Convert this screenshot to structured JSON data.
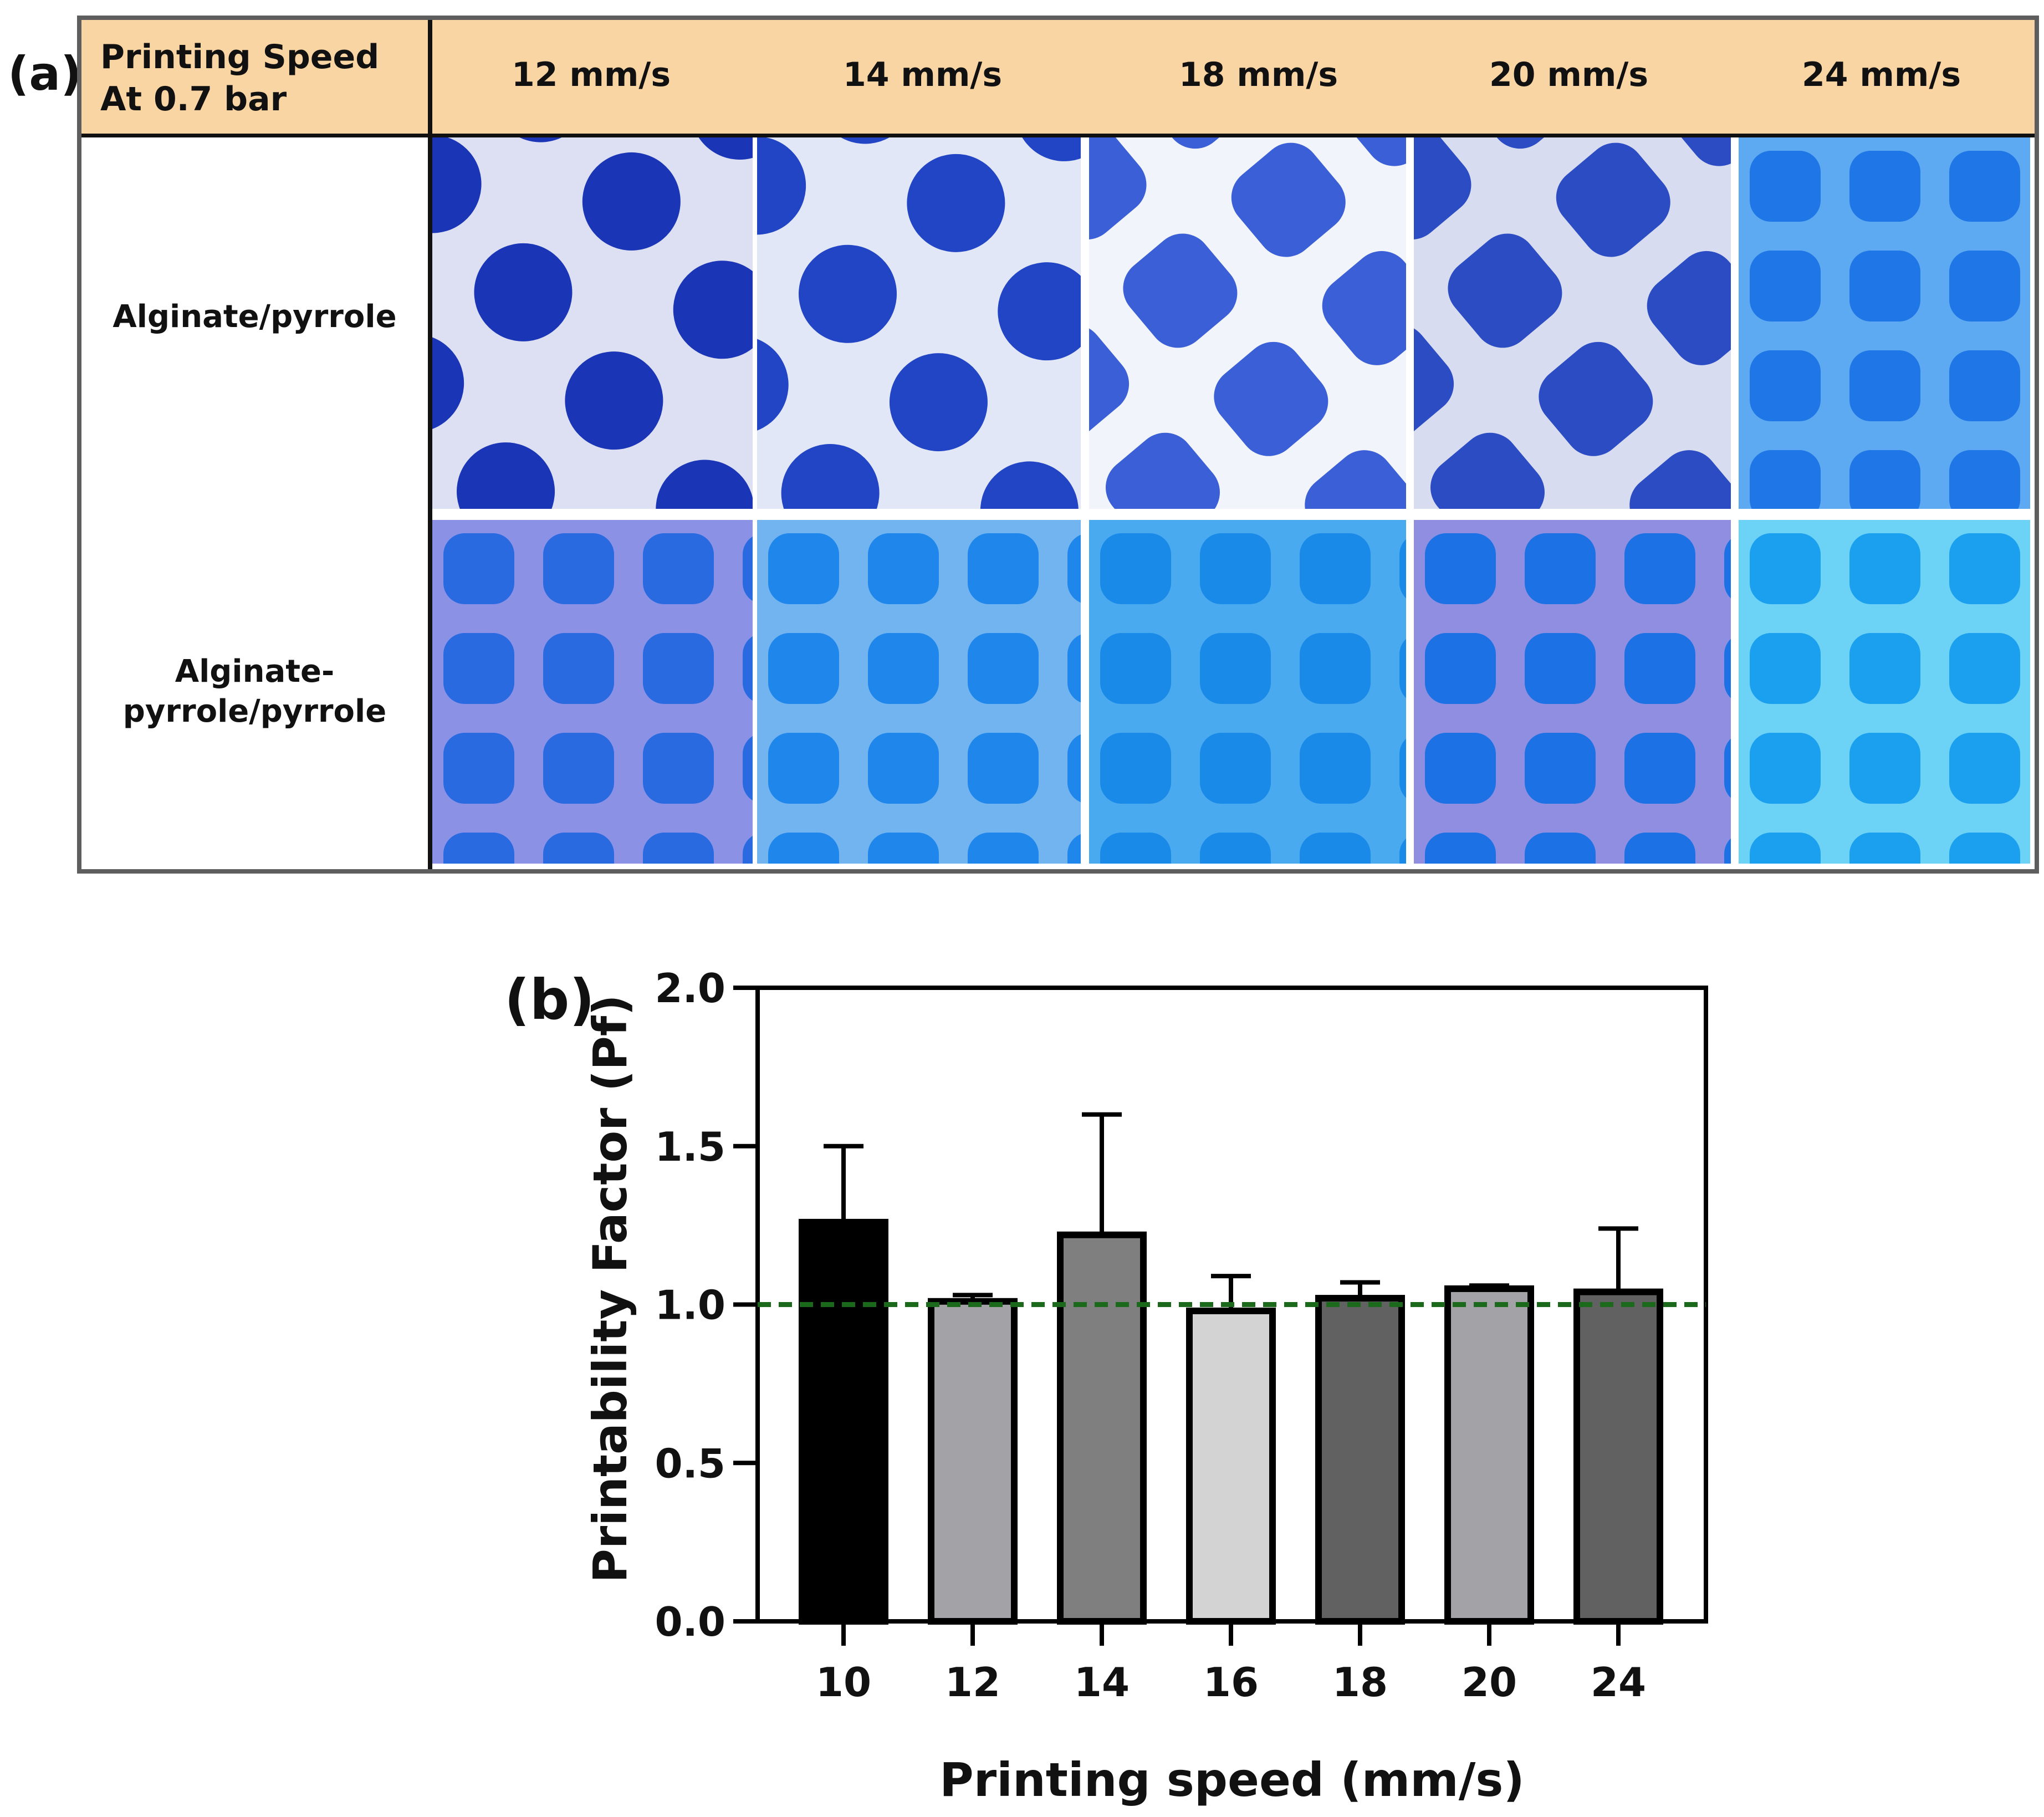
{
  "panel_a": {
    "label": "(a)",
    "header": {
      "title_line1": "Printing Speed",
      "title_line2": "At 0.7 bar",
      "speeds": [
        "12 mm/s",
        "14 mm/s",
        "18 mm/s",
        "20 mm/s",
        "24 mm/s"
      ]
    },
    "rows": [
      {
        "label_line1": "Alginate/pyrrole",
        "label_line2": ""
      },
      {
        "label_line1": "Alginate-",
        "label_line2": "pyrrole/pyrrole"
      }
    ],
    "tiles": [
      [
        {
          "bg": "#dde0f2",
          "hole": "#1a35b6",
          "shape": "round",
          "rotated": true
        },
        {
          "bg": "#e2e7f7",
          "hole": "#2145c4",
          "shape": "round",
          "rotated": true
        },
        {
          "bg": "#f2f4fb",
          "hole": "#3b5fd6",
          "shape": "rounded-square",
          "rotated": true
        },
        {
          "bg": "#d8dcf0",
          "hole": "#2c4cc4",
          "shape": "rounded-square",
          "rotated": true
        },
        {
          "bg": "#5eaaf2",
          "hole": "#1f76e6",
          "shape": "rounded-square",
          "rotated": false
        }
      ],
      [
        {
          "bg": "#8b92e6",
          "hole": "#2a6ae0",
          "shape": "rounded-square",
          "rotated": false
        },
        {
          "bg": "#72b4f0",
          "hole": "#1f86ec",
          "shape": "rounded-square",
          "rotated": false
        },
        {
          "bg": "#4aaaf0",
          "hole": "#1a8ae8",
          "shape": "rounded-square",
          "rotated": false
        },
        {
          "bg": "#8f8ee0",
          "hole": "#1c72e4",
          "shape": "rounded-square",
          "rotated": false
        },
        {
          "bg": "#6cd2f6",
          "hole": "#1aa0ee",
          "shape": "rounded-square",
          "rotated": false
        }
      ]
    ]
  },
  "chart_data": {
    "panel_label": "(b)",
    "type": "bar",
    "title": "",
    "xlabel": "Printing speed (mm/s)",
    "ylabel": "Printability Factor (Pf)",
    "categories": [
      "10",
      "12",
      "14",
      "16",
      "18",
      "20",
      "24"
    ],
    "values": [
      1.26,
      1.01,
      1.22,
      0.98,
      1.02,
      1.05,
      1.04
    ],
    "error_upper": [
      0.24,
      0.02,
      0.38,
      0.11,
      0.05,
      0.01,
      0.2
    ],
    "bar_colors": [
      "#000000",
      "#a3a3a7",
      "#7f7f7f",
      "#d3d3d3",
      "#616161",
      "#a3a3a7",
      "#616161"
    ],
    "ylim": [
      0,
      2.0
    ],
    "yticks": [
      "0.0",
      "0.5",
      "1.0",
      "1.5",
      "2.0"
    ],
    "ytick_values": [
      0,
      0.5,
      1.0,
      1.5,
      2.0
    ],
    "reference_line": {
      "y": 1.0,
      "style": "dashed",
      "color": "#1b6a1b"
    },
    "grid": false,
    "legend": "none"
  }
}
